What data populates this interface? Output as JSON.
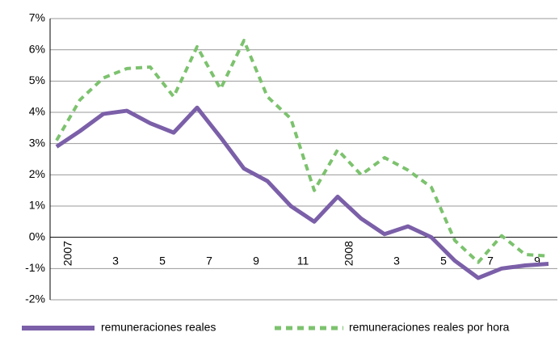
{
  "chart_data": {
    "type": "line",
    "categories": [
      "2007",
      null,
      "3",
      null,
      "5",
      null,
      "7",
      null,
      "9",
      null,
      "11",
      null,
      "2008",
      null,
      "3",
      null,
      "5",
      null,
      "7",
      null,
      "9",
      null
    ],
    "series": [
      {
        "name": "remuneraciones reales",
        "color": "#7b5fa8",
        "values": [
          2.9,
          3.4,
          3.95,
          4.05,
          3.65,
          3.35,
          4.15,
          3.2,
          2.2,
          1.8,
          1.0,
          0.5,
          1.3,
          0.6,
          0.1,
          0.35,
          0.0,
          -0.75,
          -1.3,
          -1.0,
          -0.9,
          -0.85
        ]
      },
      {
        "name": "remuneraciones reales por hora",
        "color": "#7cc26e",
        "values": [
          3.1,
          4.4,
          5.1,
          5.4,
          5.45,
          4.5,
          6.1,
          4.75,
          6.3,
          4.5,
          3.8,
          1.5,
          2.8,
          2.0,
          2.55,
          2.15,
          1.6,
          -0.1,
          -0.8,
          0.05,
          -0.55,
          -0.6
        ]
      }
    ],
    "ylim": [
      -2,
      7
    ],
    "yticks": [
      {
        "value": -2,
        "label": "-2%"
      },
      {
        "value": -1,
        "label": "-1%"
      },
      {
        "value": 0,
        "label": "0%"
      },
      {
        "value": 1,
        "label": "1%"
      },
      {
        "value": 2,
        "label": "2%"
      },
      {
        "value": 3,
        "label": "3%"
      },
      {
        "value": 4,
        "label": "4%"
      },
      {
        "value": 5,
        "label": "5%"
      },
      {
        "value": 6,
        "label": "6%"
      },
      {
        "value": 7,
        "label": "7%"
      }
    ],
    "grid": true
  }
}
